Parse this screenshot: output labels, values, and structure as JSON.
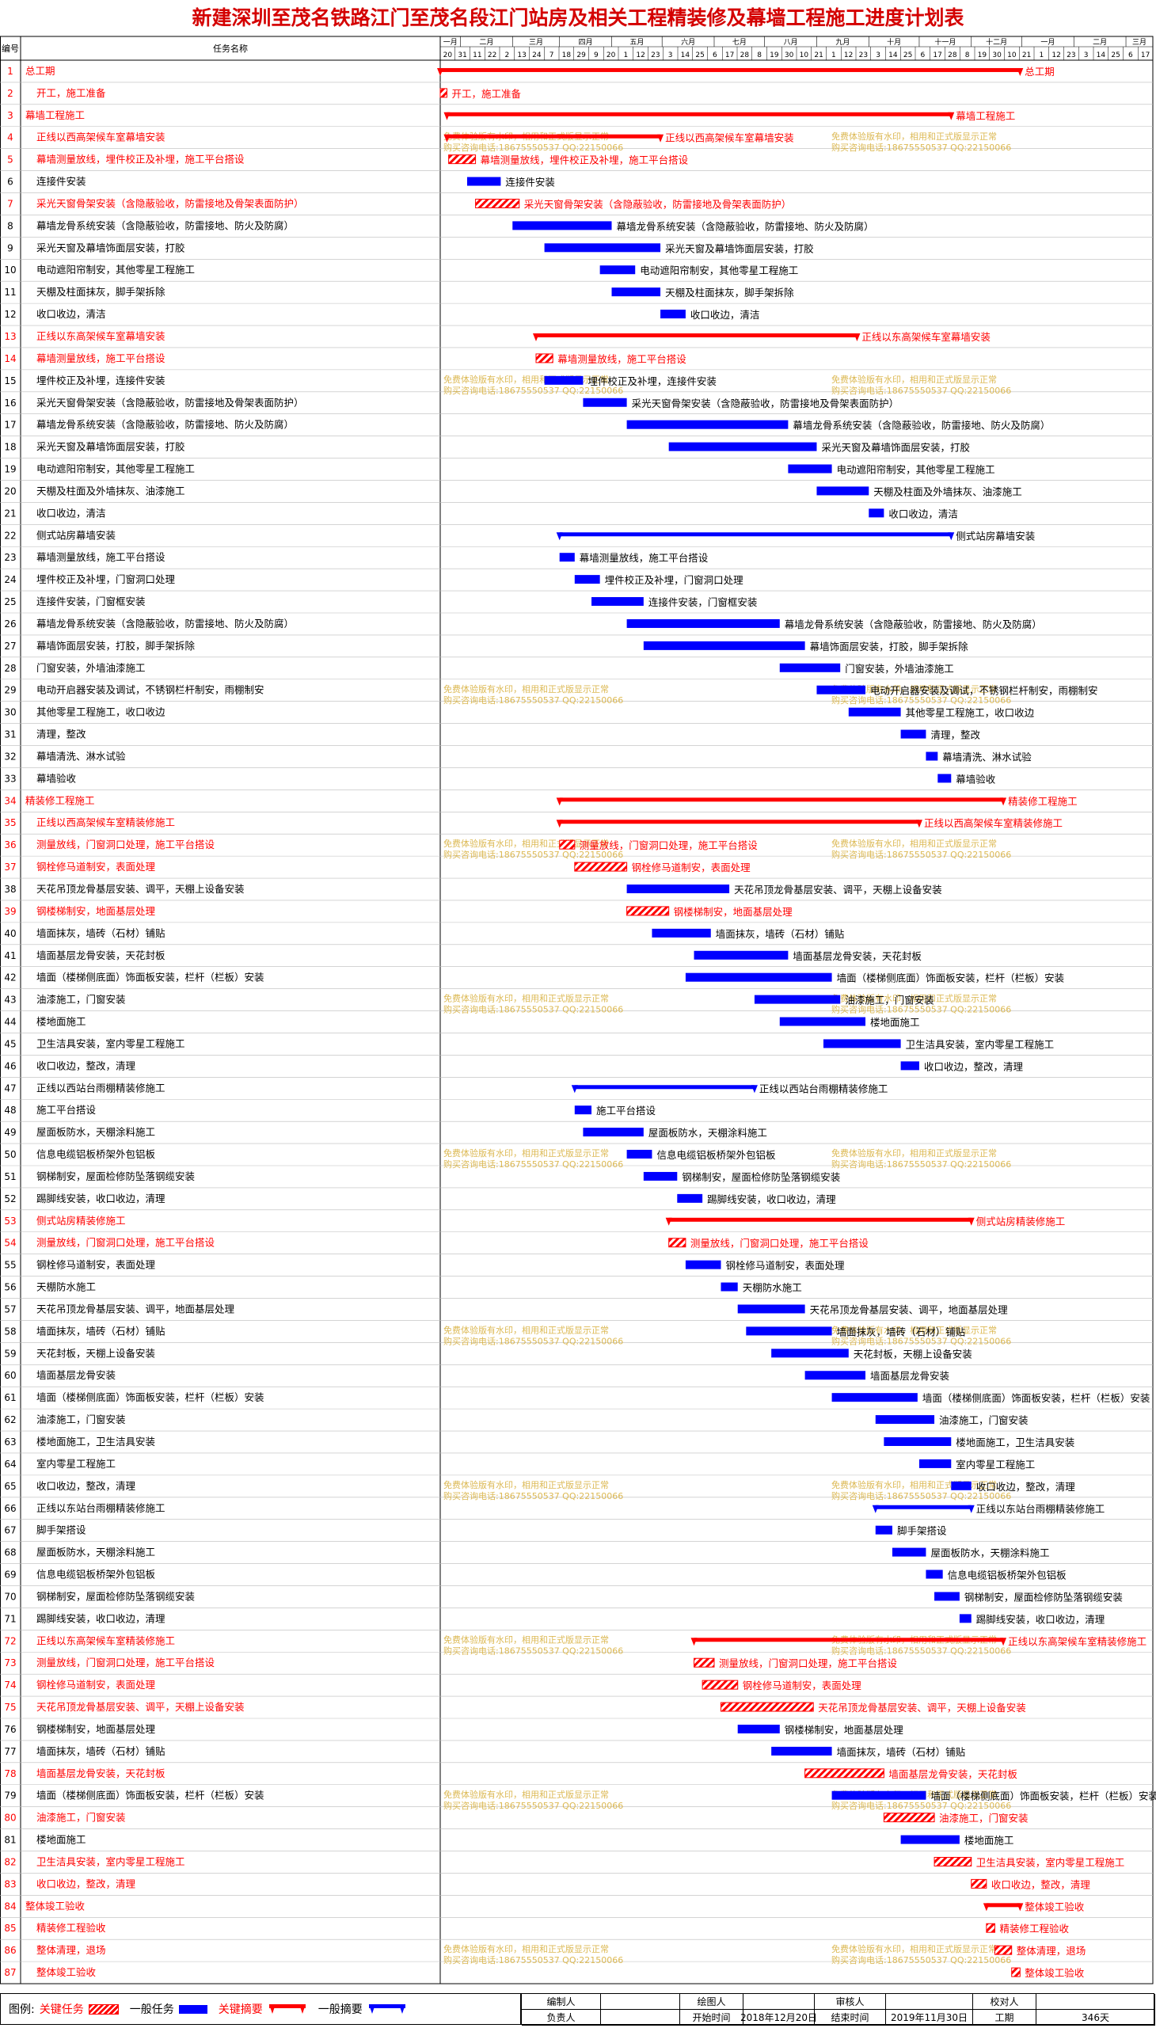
{
  "title": "新建深圳至茂名铁路江门至茂名段江门站房及相关工程精装修及幕墙工程施工进度计划表",
  "header": {
    "col_id": "编号",
    "col_name": "任务名称"
  },
  "watermark": {
    "line1": "免费体验版有水印，相用和正式版显示正常",
    "line2": "购买咨询电话:18675550537 QQ:22150066"
  },
  "legend": {
    "label": "图例:",
    "key_task": "关键任务",
    "normal_task": "一般任务",
    "key_summary": "关键摘要",
    "normal_summary": "一般摘要"
  },
  "footer": {
    "compiler_label": "编制人",
    "draw_label": "绘图人",
    "reviewer_label": "审核人",
    "checker_label": "校对人",
    "owner_label": "负责人",
    "start_label": "开始时间",
    "start_value": "2018年12月20日",
    "end_label": "结束时间",
    "end_value": "2019年11月30日",
    "duration_label": "工期",
    "duration_value": "346天"
  },
  "colors": {
    "critical": "#ff0000",
    "normal": "#0000ff",
    "grid": "#999999",
    "title": "#d40000",
    "watermark": "#d4a82a"
  },
  "chart_data": {
    "type": "gantt",
    "title": "新建深圳至茂名铁路江门至茂名段江门站房及相关工程精装修及幕墙工程施工进度计划表",
    "timeline": {
      "start": "2018-12-20",
      "end": "2020-02-17",
      "month_labels": [
        "一月",
        "二月",
        "三月",
        "四月",
        "五月",
        "六月",
        "七月",
        "八月",
        "九月",
        "十月",
        "十一月",
        "十二月",
        "一月",
        "二月",
        "三月"
      ],
      "tick_labels": [
        "20",
        "31",
        "11",
        "22",
        "2",
        "13",
        "24",
        "7",
        "18",
        "29",
        "9",
        "20",
        "1",
        "12",
        "23",
        "3",
        "14",
        "25",
        "6",
        "17",
        "28",
        "8",
        "19",
        "30",
        "10",
        "21",
        "1",
        "12",
        "23",
        "3",
        "14",
        "25",
        "6",
        "17",
        "28",
        "8",
        "19",
        "30",
        "10",
        "21",
        "1",
        "12",
        "23",
        "3",
        "14",
        "25",
        "6",
        "17"
      ]
    },
    "tasks": [
      {
        "id": "1",
        "name": "总工期",
        "start": "2018-12-20",
        "end": "2019-11-30",
        "type": "summary",
        "critical": true
      },
      {
        "id": "2",
        "name": "开工，施工准备",
        "start": "2018-12-20",
        "end": "2018-12-24",
        "type": "task",
        "critical": true
      },
      {
        "id": "3",
        "name": "幕墙工程施工",
        "start": "2018-12-24",
        "end": "2019-10-20",
        "type": "summary",
        "critical": true
      },
      {
        "id": "4",
        "name": "正线以西高架候车室幕墙安装",
        "start": "2018-12-24",
        "end": "2019-04-30",
        "type": "summary",
        "critical": true
      },
      {
        "id": "5",
        "name": "幕墙测量放线，埋件校正及补埋，施工平台搭设",
        "start": "2018-12-25",
        "end": "2019-01-10",
        "type": "task",
        "critical": true
      },
      {
        "id": "6",
        "name": "连接件安装",
        "start": "2019-01-05",
        "end": "2019-01-25",
        "type": "task",
        "critical": false
      },
      {
        "id": "7",
        "name": "采光天窗骨架安装（含隐蔽验收，防雷接地及骨架表面防护）",
        "start": "2019-01-10",
        "end": "2019-02-05",
        "type": "task",
        "critical": true
      },
      {
        "id": "8",
        "name": "幕墙龙骨系统安装（含隐蔽验收，防雷接地、防火及防腐）",
        "start": "2019-02-01",
        "end": "2019-04-01",
        "type": "task",
        "critical": false
      },
      {
        "id": "9",
        "name": "采光天窗及幕墙饰面层安装，打胶",
        "start": "2019-02-20",
        "end": "2019-04-30",
        "type": "task",
        "critical": false
      },
      {
        "id": "10",
        "name": "电动遮阳帘制安，其他零星工程施工",
        "start": "2019-03-25",
        "end": "2019-04-15",
        "type": "task",
        "critical": false
      },
      {
        "id": "11",
        "name": "天棚及柱面抹灰，脚手架拆除",
        "start": "2019-04-01",
        "end": "2019-04-30",
        "type": "task",
        "critical": false
      },
      {
        "id": "12",
        "name": "收口收边，清洁",
        "start": "2019-04-30",
        "end": "2019-05-15",
        "type": "task",
        "critical": false
      },
      {
        "id": "13",
        "name": "正线以东高架候车室幕墙安装",
        "start": "2019-02-15",
        "end": "2019-08-25",
        "type": "summary",
        "critical": true
      },
      {
        "id": "14",
        "name": "幕墙测量放线，施工平台搭设",
        "start": "2019-02-15",
        "end": "2019-02-25",
        "type": "task",
        "critical": true
      },
      {
        "id": "15",
        "name": "埋件校正及补埋，连接件安装",
        "start": "2019-02-20",
        "end": "2019-03-15",
        "type": "task",
        "critical": false
      },
      {
        "id": "16",
        "name": "采光天窗骨架安装（含隐蔽验收，防雷接地及骨架表面防护）",
        "start": "2019-03-15",
        "end": "2019-04-10",
        "type": "task",
        "critical": false
      },
      {
        "id": "17",
        "name": "幕墙龙骨系统安装（含隐蔽验收，防雷接地、防火及防腐）",
        "start": "2019-04-10",
        "end": "2019-07-15",
        "type": "task",
        "critical": false
      },
      {
        "id": "18",
        "name": "采光天窗及幕墙饰面层安装，打胶",
        "start": "2019-05-05",
        "end": "2019-08-01",
        "type": "task",
        "critical": false
      },
      {
        "id": "19",
        "name": "电动遮阳帘制安，其他零星工程施工",
        "start": "2019-07-15",
        "end": "2019-08-10",
        "type": "task",
        "critical": false
      },
      {
        "id": "20",
        "name": "天棚及柱面及外墙抹灰、油漆施工",
        "start": "2019-08-01",
        "end": "2019-09-01",
        "type": "task",
        "critical": false
      },
      {
        "id": "21",
        "name": "收口收边，清洁",
        "start": "2019-09-01",
        "end": "2019-09-10",
        "type": "task",
        "critical": false
      },
      {
        "id": "22",
        "name": "侧式站房幕墙安装",
        "start": "2019-03-01",
        "end": "2019-10-20",
        "type": "summary",
        "critical": false
      },
      {
        "id": "23",
        "name": "幕墙测量放线，施工平台搭设",
        "start": "2019-03-01",
        "end": "2019-03-10",
        "type": "task",
        "critical": false
      },
      {
        "id": "24",
        "name": "埋件校正及补埋，门窗洞口处理",
        "start": "2019-03-10",
        "end": "2019-03-25",
        "type": "task",
        "critical": false
      },
      {
        "id": "25",
        "name": "连接件安装，门窗框安装",
        "start": "2019-03-20",
        "end": "2019-04-20",
        "type": "task",
        "critical": false
      },
      {
        "id": "26",
        "name": "幕墙龙骨系统安装（含隐蔽验收，防雷接地、防火及防腐）",
        "start": "2019-04-10",
        "end": "2019-07-10",
        "type": "task",
        "critical": false
      },
      {
        "id": "27",
        "name": "幕墙饰面层安装，打胶，脚手架拆除",
        "start": "2019-04-20",
        "end": "2019-07-25",
        "type": "task",
        "critical": false
      },
      {
        "id": "28",
        "name": "门窗安装，外墙油漆施工",
        "start": "2019-07-10",
        "end": "2019-08-15",
        "type": "task",
        "critical": false
      },
      {
        "id": "29",
        "name": "电动开启器安装及调试，不锈钢栏杆制安，雨棚制安",
        "start": "2019-08-01",
        "end": "2019-08-30",
        "type": "task",
        "critical": false
      },
      {
        "id": "30",
        "name": "其他零星工程施工，收口收边",
        "start": "2019-08-20",
        "end": "2019-09-20",
        "type": "task",
        "critical": false
      },
      {
        "id": "31",
        "name": "清理，整改",
        "start": "2019-09-20",
        "end": "2019-10-05",
        "type": "task",
        "critical": false
      },
      {
        "id": "32",
        "name": "幕墙清洗、淋水试验",
        "start": "2019-10-05",
        "end": "2019-10-12",
        "type": "task",
        "critical": false
      },
      {
        "id": "33",
        "name": "幕墙验收",
        "start": "2019-10-12",
        "end": "2019-10-20",
        "type": "task",
        "critical": false
      },
      {
        "id": "34",
        "name": "精装修工程施工",
        "start": "2019-03-01",
        "end": "2019-11-20",
        "type": "summary",
        "critical": true
      },
      {
        "id": "35",
        "name": "正线以西高架候车室精装修施工",
        "start": "2019-03-01",
        "end": "2019-10-01",
        "type": "summary",
        "critical": true
      },
      {
        "id": "36",
        "name": "测量放线，门窗洞口处理，施工平台搭设",
        "start": "2019-03-01",
        "end": "2019-03-10",
        "type": "task",
        "critical": true
      },
      {
        "id": "37",
        "name": "钢栓修马道制安，表面处理",
        "start": "2019-03-10",
        "end": "2019-04-10",
        "type": "task",
        "critical": true
      },
      {
        "id": "38",
        "name": "天花吊顶龙骨基层安装、调平，天棚上设备安装",
        "start": "2019-04-10",
        "end": "2019-06-10",
        "type": "task",
        "critical": false
      },
      {
        "id": "39",
        "name": "钢楼梯制安，地面基层处理",
        "start": "2019-04-10",
        "end": "2019-05-05",
        "type": "task",
        "critical": true
      },
      {
        "id": "40",
        "name": "墙面抹灰，墙砖（石材）铺贴",
        "start": "2019-04-25",
        "end": "2019-05-30",
        "type": "task",
        "critical": false
      },
      {
        "id": "41",
        "name": "墙面基层龙骨安装，天花封板",
        "start": "2019-05-20",
        "end": "2019-07-15",
        "type": "task",
        "critical": false
      },
      {
        "id": "42",
        "name": "墙面（楼梯侧底面）饰面板安装，栏杆（栏板）安装",
        "start": "2019-05-15",
        "end": "2019-08-10",
        "type": "task",
        "critical": false
      },
      {
        "id": "43",
        "name": "油漆施工，门窗安装",
        "start": "2019-06-25",
        "end": "2019-08-15",
        "type": "task",
        "critical": false
      },
      {
        "id": "44",
        "name": "楼地面施工",
        "start": "2019-07-10",
        "end": "2019-08-30",
        "type": "task",
        "critical": false
      },
      {
        "id": "45",
        "name": "卫生洁具安装，室内零星工程施工",
        "start": "2019-08-05",
        "end": "2019-09-20",
        "type": "task",
        "critical": false
      },
      {
        "id": "46",
        "name": "收口收边，整改，清理",
        "start": "2019-09-20",
        "end": "2019-10-01",
        "type": "task",
        "critical": false
      },
      {
        "id": "47",
        "name": "正线以西站台雨棚精装修施工",
        "start": "2019-03-10",
        "end": "2019-06-25",
        "type": "summary",
        "critical": false
      },
      {
        "id": "48",
        "name": "施工平台搭设",
        "start": "2019-03-10",
        "end": "2019-03-20",
        "type": "task",
        "critical": false
      },
      {
        "id": "49",
        "name": "屋面板防水，天棚涂料施工",
        "start": "2019-03-15",
        "end": "2019-04-20",
        "type": "task",
        "critical": false
      },
      {
        "id": "50",
        "name": "信息电缆铝板桥架外包铝板",
        "start": "2019-04-10",
        "end": "2019-04-25",
        "type": "task",
        "critical": false
      },
      {
        "id": "51",
        "name": "钢梯制安，屋面检修防坠落钢缆安装",
        "start": "2019-04-20",
        "end": "2019-05-10",
        "type": "task",
        "critical": false
      },
      {
        "id": "52",
        "name": "踢脚线安装，收口收边，清理",
        "start": "2019-05-10",
        "end": "2019-05-25",
        "type": "task",
        "critical": false
      },
      {
        "id": "53",
        "name": "侧式站房精装修施工",
        "start": "2019-05-05",
        "end": "2019-11-01",
        "type": "summary",
        "critical": true
      },
      {
        "id": "54",
        "name": "测量放线，门窗洞口处理，施工平台搭设",
        "start": "2019-05-05",
        "end": "2019-05-15",
        "type": "task",
        "critical": true
      },
      {
        "id": "55",
        "name": "钢栓修马道制安，表面处理",
        "start": "2019-05-15",
        "end": "2019-06-05",
        "type": "task",
        "critical": false
      },
      {
        "id": "56",
        "name": "天棚防水施工",
        "start": "2019-06-05",
        "end": "2019-06-15",
        "type": "task",
        "critical": false
      },
      {
        "id": "57",
        "name": "天花吊顶龙骨基层安装、调平，地面基层处理",
        "start": "2019-06-15",
        "end": "2019-07-25",
        "type": "task",
        "critical": false
      },
      {
        "id": "58",
        "name": "墙面抹灰，墙砖（石材）铺贴",
        "start": "2019-06-20",
        "end": "2019-08-10",
        "type": "task",
        "critical": false
      },
      {
        "id": "59",
        "name": "天花封板，天棚上设备安装",
        "start": "2019-07-05",
        "end": "2019-08-20",
        "type": "task",
        "critical": false
      },
      {
        "id": "60",
        "name": "墙面基层龙骨安装",
        "start": "2019-07-25",
        "end": "2019-08-30",
        "type": "task",
        "critical": false
      },
      {
        "id": "61",
        "name": "墙面（楼梯侧底面）饰面板安装，栏杆（栏板）安装",
        "start": "2019-08-10",
        "end": "2019-09-30",
        "type": "task",
        "critical": false
      },
      {
        "id": "62",
        "name": "油漆施工，门窗安装",
        "start": "2019-09-05",
        "end": "2019-10-10",
        "type": "task",
        "critical": false
      },
      {
        "id": "63",
        "name": "楼地面施工，卫生洁具安装",
        "start": "2019-09-10",
        "end": "2019-10-20",
        "type": "task",
        "critical": false
      },
      {
        "id": "64",
        "name": "室内零星工程施工",
        "start": "2019-10-01",
        "end": "2019-10-20",
        "type": "task",
        "critical": false
      },
      {
        "id": "65",
        "name": "收口收边，整改，清理",
        "start": "2019-10-20",
        "end": "2019-11-01",
        "type": "task",
        "critical": false
      },
      {
        "id": "66",
        "name": "正线以东站台雨棚精装修施工",
        "start": "2019-09-05",
        "end": "2019-11-01",
        "type": "summary",
        "critical": false
      },
      {
        "id": "67",
        "name": "脚手架搭设",
        "start": "2019-09-05",
        "end": "2019-09-15",
        "type": "task",
        "critical": false
      },
      {
        "id": "68",
        "name": "屋面板防水，天棚涂料施工",
        "start": "2019-09-15",
        "end": "2019-10-05",
        "type": "task",
        "critical": false
      },
      {
        "id": "69",
        "name": "信息电缆铝板桥架外包铝板",
        "start": "2019-10-05",
        "end": "2019-10-15",
        "type": "task",
        "critical": false
      },
      {
        "id": "70",
        "name": "钢梯制安，屋面检修防坠落钢缆安装",
        "start": "2019-10-10",
        "end": "2019-10-25",
        "type": "task",
        "critical": false
      },
      {
        "id": "71",
        "name": "踢脚线安装，收口收边，清理",
        "start": "2019-10-25",
        "end": "2019-11-01",
        "type": "task",
        "critical": false
      },
      {
        "id": "72",
        "name": "正线以东高架候车室精装修施工",
        "start": "2019-05-20",
        "end": "2019-11-20",
        "type": "summary",
        "critical": true
      },
      {
        "id": "73",
        "name": "测量放线，门窗洞口处理，施工平台搭设",
        "start": "2019-05-20",
        "end": "2019-06-01",
        "type": "task",
        "critical": true
      },
      {
        "id": "74",
        "name": "钢栓修马道制安，表面处理",
        "start": "2019-05-25",
        "end": "2019-06-15",
        "type": "task",
        "critical": true
      },
      {
        "id": "75",
        "name": "天花吊顶龙骨基层安装、调平，天棚上设备安装",
        "start": "2019-06-05",
        "end": "2019-07-30",
        "type": "task",
        "critical": true
      },
      {
        "id": "76",
        "name": "钢楼梯制安，地面基层处理",
        "start": "2019-06-15",
        "end": "2019-07-10",
        "type": "task",
        "critical": false
      },
      {
        "id": "77",
        "name": "墙面抹灰，墙砖（石材）铺贴",
        "start": "2019-07-05",
        "end": "2019-08-10",
        "type": "task",
        "critical": false
      },
      {
        "id": "78",
        "name": "墙面基层龙骨安装，天花封板",
        "start": "2019-07-25",
        "end": "2019-09-10",
        "type": "task",
        "critical": true
      },
      {
        "id": "79",
        "name": "墙面（楼梯侧底面）饰面板安装，栏杆（栏板）安装",
        "start": "2019-08-10",
        "end": "2019-10-05",
        "type": "task",
        "critical": false
      },
      {
        "id": "80",
        "name": "油漆施工，门窗安装",
        "start": "2019-09-10",
        "end": "2019-10-10",
        "type": "task",
        "critical": true
      },
      {
        "id": "81",
        "name": "楼地面施工",
        "start": "2019-09-20",
        "end": "2019-10-25",
        "type": "task",
        "critical": false
      },
      {
        "id": "82",
        "name": "卫生洁具安装，室内零星工程施工",
        "start": "2019-10-10",
        "end": "2019-11-01",
        "type": "task",
        "critical": true
      },
      {
        "id": "83",
        "name": "收口收边，整改，清理",
        "start": "2019-11-01",
        "end": "2019-11-10",
        "type": "task",
        "critical": true
      },
      {
        "id": "84",
        "name": "整体竣工验收",
        "start": "2019-11-10",
        "end": "2019-11-30",
        "type": "summary",
        "critical": true
      },
      {
        "id": "85",
        "name": "精装修工程验收",
        "start": "2019-11-10",
        "end": "2019-11-15",
        "type": "task",
        "critical": true
      },
      {
        "id": "86",
        "name": "整体清理，退场",
        "start": "2019-11-15",
        "end": "2019-11-25",
        "type": "task",
        "critical": true
      },
      {
        "id": "87",
        "name": "整体竣工验收",
        "start": "2019-11-25",
        "end": "2019-11-30",
        "type": "task",
        "critical": true
      }
    ]
  }
}
